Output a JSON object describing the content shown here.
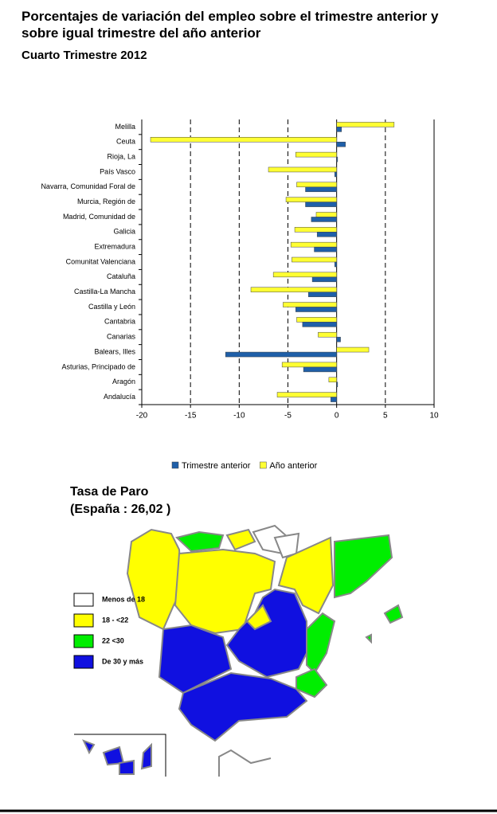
{
  "chart_data": {
    "type": "hbar",
    "title": "Porcentajes de variación del empleo sobre el trimestre anterior y sobre igual trimestre del año anterior",
    "subtitle": "Cuarto Trimestre 2012",
    "categories": [
      "Melilla",
      "Ceuta",
      "Rioja, La",
      "País Vasco",
      "Navarra, Comunidad Foral de",
      "Murcia, Región de",
      "Madrid, Comunidad de",
      "Galicia",
      "Extremadura",
      "Comunitat Valenciana",
      "Cataluña",
      "Castilla-La Mancha",
      "Castilla y León",
      "Cantabria",
      "Canarias",
      "Balears, Illes",
      "Asturias, Principado de",
      "Aragón",
      "Andalucía"
    ],
    "series": [
      {
        "name": "Trimestre anterior",
        "color": "#1f5fa8",
        "values": [
          0.5,
          0.9,
          0.1,
          -0.2,
          -3.2,
          -3.2,
          -2.6,
          -2.0,
          -2.3,
          -0.2,
          -2.5,
          -2.9,
          -4.2,
          -3.5,
          0.4,
          -11.4,
          -3.4,
          0.1,
          -0.6
        ]
      },
      {
        "name": "Año anterior",
        "color": "#ffff33",
        "values": [
          5.9,
          -19.1,
          -4.2,
          -7.0,
          -4.1,
          -5.2,
          -2.1,
          -4.3,
          -4.7,
          -4.6,
          -6.5,
          -8.8,
          -5.5,
          -4.1,
          -1.9,
          3.3,
          -5.6,
          -0.8,
          -6.1
        ]
      }
    ],
    "xlim": [
      -20,
      10
    ],
    "xticks": [
      -20,
      -15,
      -10,
      -5,
      0,
      5,
      10
    ],
    "grid": true,
    "legend": "bottom"
  },
  "map": {
    "title": "Tasa de Paro",
    "subtitle": "(España :  26,02   )",
    "legend": [
      {
        "label": "Menos de 18",
        "color": "#ffffff"
      },
      {
        "label": "18 - <22",
        "color": "#ffff00"
      },
      {
        "label": "22 <30",
        "color": "#00ee00"
      },
      {
        "label": "De 30 y más",
        "color": "#1010e0"
      }
    ]
  }
}
